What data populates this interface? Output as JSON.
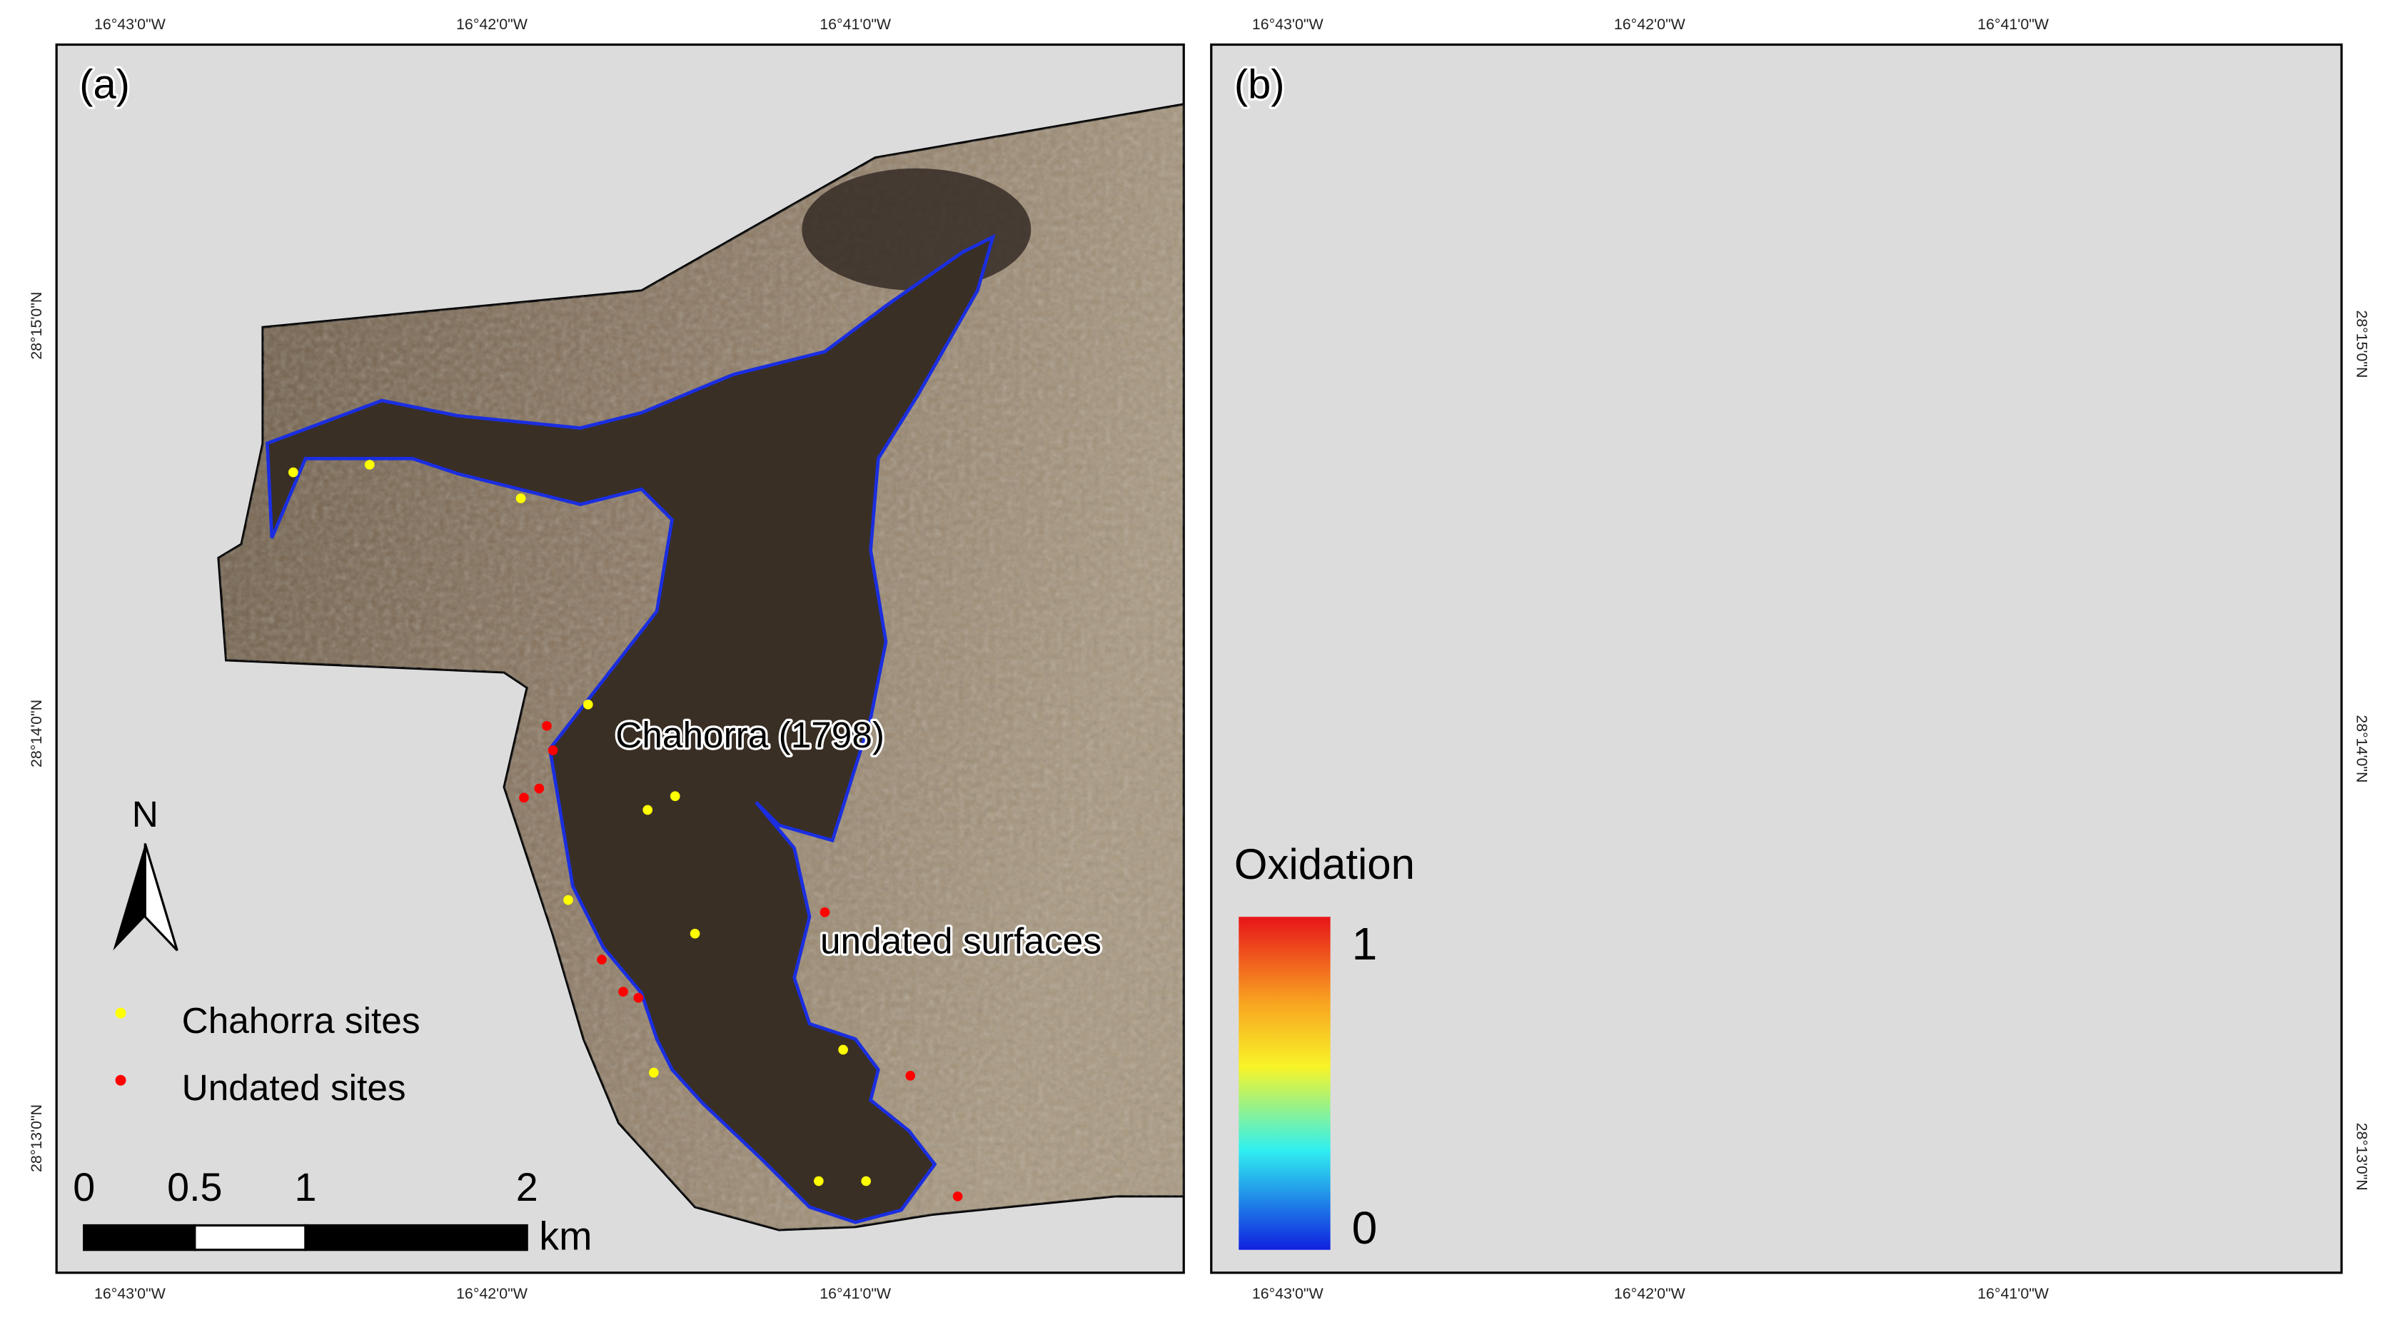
{
  "panels": [
    {
      "label": "(a)",
      "top_ticks": [
        "16°43'0\"W",
        "16°42'0\"W",
        "16°41'0\"W"
      ],
      "bottom_ticks": [
        "16°43'0\"W",
        "16°42'0\"W",
        "16°41'0\"W"
      ],
      "left_ticks": [
        "28°15'0\"N",
        "28°14'0\"N",
        "28°13'0\"N"
      ]
    },
    {
      "label": "(b)",
      "top_ticks": [
        "16°43'0\"W",
        "16°42'0\"W",
        "16°41'0\"W"
      ],
      "bottom_ticks": [
        "16°43'0\"W",
        "16°42'0\"W",
        "16°41'0\"W"
      ],
      "right_ticks": [
        "28°15'0\"N",
        "28°14'0\"N",
        "28°13'0\"N"
      ]
    }
  ],
  "annotations": {
    "flow": "Chahorra (1798)",
    "undated": "undated surfaces"
  },
  "north": "N",
  "legend": {
    "items": [
      {
        "name": "Chahorra sites",
        "color": "#ffff00"
      },
      {
        "name": "Undated sites",
        "color": "#ff0000"
      }
    ]
  },
  "scale_bar": {
    "ticks": [
      0,
      0.5,
      1,
      2
    ],
    "unit": "km"
  },
  "colorbar": {
    "title": "Oxidation",
    "ticks": [
      1,
      0
    ]
  }
}
